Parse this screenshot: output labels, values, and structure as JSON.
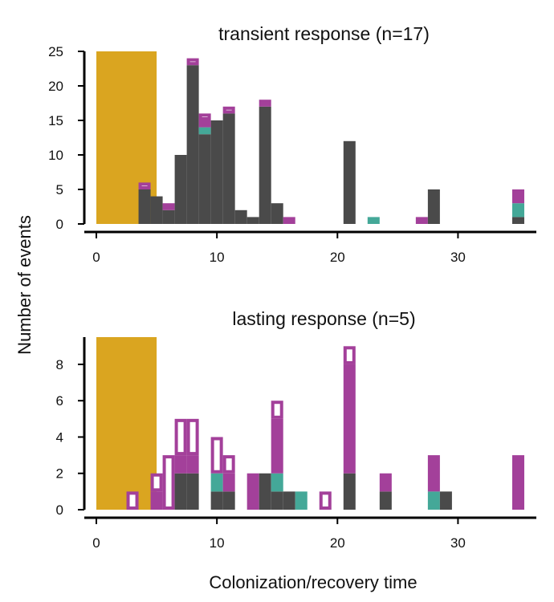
{
  "ylabel": "Number of events",
  "xlabel": "Colonization/recovery time",
  "colors": {
    "gray": "#4a4a4a",
    "teal": "#44a898",
    "magenta": "#a3409a",
    "gold": "#daa520",
    "axis": "#000000"
  },
  "chart_data": [
    {
      "type": "bar",
      "title": "transient response (n=17)",
      "xlim": [
        -1,
        36.5
      ],
      "ylim": [
        0,
        25
      ],
      "xticks": [
        0,
        10,
        20,
        30
      ],
      "yticks": [
        0,
        5,
        10,
        15,
        20,
        25
      ],
      "bin_width": 1,
      "shaded_region": {
        "x": [
          0,
          5
        ],
        "color": "gold"
      },
      "stack_order": [
        "gray",
        "teal",
        "magenta",
        "outline"
      ],
      "bins": [
        {
          "x": 3.5,
          "gray": 5,
          "teal": 0,
          "magenta": 0,
          "outline": 1
        },
        {
          "x": 4.5,
          "gray": 4,
          "teal": 0,
          "magenta": 0,
          "outline": 0
        },
        {
          "x": 5.5,
          "gray": 2,
          "teal": 0,
          "magenta": 1,
          "outline": 0
        },
        {
          "x": 6.5,
          "gray": 10,
          "teal": 0,
          "magenta": 0,
          "outline": 0
        },
        {
          "x": 7.5,
          "gray": 23,
          "teal": 0,
          "magenta": 0,
          "outline": 1
        },
        {
          "x": 8.5,
          "gray": 13,
          "teal": 1,
          "magenta": 1,
          "outline": 1
        },
        {
          "x": 9.5,
          "gray": 15,
          "teal": 0,
          "magenta": 0,
          "outline": 0
        },
        {
          "x": 10.5,
          "gray": 16,
          "teal": 0,
          "magenta": 0,
          "outline": 1
        },
        {
          "x": 11.5,
          "gray": 2,
          "teal": 0,
          "magenta": 0,
          "outline": 0
        },
        {
          "x": 12.5,
          "gray": 1,
          "teal": 0,
          "magenta": 0,
          "outline": 0
        },
        {
          "x": 13.5,
          "gray": 17,
          "teal": 0,
          "magenta": 1,
          "outline": 0
        },
        {
          "x": 14.5,
          "gray": 3,
          "teal": 0,
          "magenta": 0,
          "outline": 0
        },
        {
          "x": 15.5,
          "gray": 0,
          "teal": 0,
          "magenta": 1,
          "outline": 0
        },
        {
          "x": 20.5,
          "gray": 12,
          "teal": 0,
          "magenta": 0,
          "outline": 0
        },
        {
          "x": 22.5,
          "gray": 0,
          "teal": 1,
          "magenta": 0,
          "outline": 0
        },
        {
          "x": 26.5,
          "gray": 0,
          "teal": 0,
          "magenta": 1,
          "outline": 0
        },
        {
          "x": 27.5,
          "gray": 5,
          "teal": 0,
          "magenta": 0,
          "outline": 0
        },
        {
          "x": 34.5,
          "gray": 1,
          "teal": 2,
          "magenta": 2,
          "outline": 0
        }
      ]
    },
    {
      "type": "bar",
      "title": "lasting response (n=5)",
      "xlim": [
        -1,
        36.5
      ],
      "ylim": [
        0,
        9.5
      ],
      "xticks": [
        0,
        10,
        20,
        30
      ],
      "yticks": [
        0,
        2,
        4,
        6,
        8
      ],
      "bin_width": 1,
      "shaded_region": {
        "x": [
          0,
          5
        ],
        "color": "gold"
      },
      "stack_order": [
        "gray",
        "teal",
        "magenta",
        "outline"
      ],
      "bins": [
        {
          "x": 2.5,
          "gray": 0,
          "teal": 0,
          "magenta": 0,
          "outline": 1
        },
        {
          "x": 4.5,
          "gray": 0,
          "teal": 0,
          "magenta": 1,
          "outline": 1
        },
        {
          "x": 5.5,
          "gray": 0,
          "teal": 0,
          "magenta": 0,
          "outline": 3
        },
        {
          "x": 6.5,
          "gray": 2,
          "teal": 0,
          "magenta": 1,
          "outline": 2
        },
        {
          "x": 7.5,
          "gray": 2,
          "teal": 0,
          "magenta": 1,
          "outline": 2
        },
        {
          "x": 9.5,
          "gray": 1,
          "teal": 1,
          "magenta": 0,
          "outline": 2
        },
        {
          "x": 10.5,
          "gray": 1,
          "teal": 0,
          "magenta": 1,
          "outline": 1
        },
        {
          "x": 12.5,
          "gray": 0,
          "teal": 0,
          "magenta": 2,
          "outline": 0
        },
        {
          "x": 13.5,
          "gray": 2,
          "teal": 0,
          "magenta": 0,
          "outline": 0
        },
        {
          "x": 14.5,
          "gray": 1,
          "teal": 1,
          "magenta": 3,
          "outline": 1
        },
        {
          "x": 15.5,
          "gray": 1,
          "teal": 0,
          "magenta": 0,
          "outline": 0
        },
        {
          "x": 16.5,
          "gray": 0,
          "teal": 1,
          "magenta": 0,
          "outline": 0
        },
        {
          "x": 18.5,
          "gray": 0,
          "teal": 0,
          "magenta": 0,
          "outline": 1
        },
        {
          "x": 20.5,
          "gray": 2,
          "teal": 0,
          "magenta": 6,
          "outline": 1
        },
        {
          "x": 23.5,
          "gray": 1,
          "teal": 0,
          "magenta": 1,
          "outline": 0
        },
        {
          "x": 27.5,
          "gray": 0,
          "teal": 1,
          "magenta": 2,
          "outline": 0
        },
        {
          "x": 28.5,
          "gray": 1,
          "teal": 0,
          "magenta": 0,
          "outline": 0
        },
        {
          "x": 34.5,
          "gray": 0,
          "teal": 0,
          "magenta": 3,
          "outline": 0
        }
      ]
    }
  ]
}
